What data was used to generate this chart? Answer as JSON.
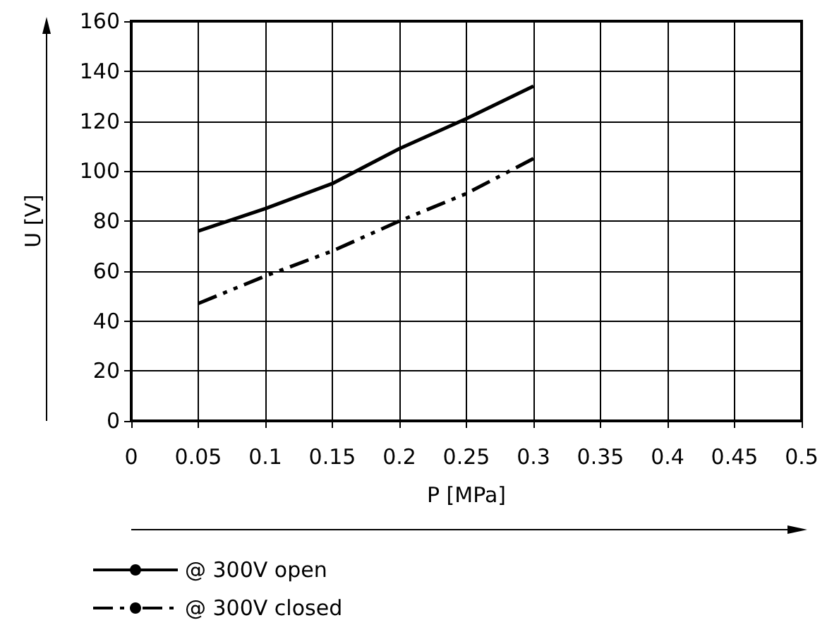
{
  "chart_data": {
    "type": "line",
    "xlabel": "P [MPa]",
    "ylabel": "U [V]",
    "x": [
      0.05,
      0.1,
      0.15,
      0.2,
      0.25,
      0.3
    ],
    "series": [
      {
        "name": "@ 300V open",
        "color": "#000000",
        "line_style": "solid",
        "values": [
          76,
          85,
          95,
          109,
          121,
          134
        ]
      },
      {
        "name": "@ 300V closed",
        "color": "#000000",
        "line_style": "dashed",
        "values": [
          47,
          58,
          68,
          80,
          91,
          105
        ]
      }
    ],
    "xlim": [
      0,
      0.5
    ],
    "xticks": [
      0,
      0.05,
      0.1,
      0.15,
      0.2,
      0.25,
      0.3,
      0.35,
      0.4,
      0.45,
      0.5
    ],
    "ylim": [
      0,
      160
    ],
    "yticks": [
      0,
      20,
      40,
      60,
      80,
      100,
      120,
      140,
      160
    ],
    "grid": true,
    "legend": "bottom left",
    "marker": "none"
  }
}
